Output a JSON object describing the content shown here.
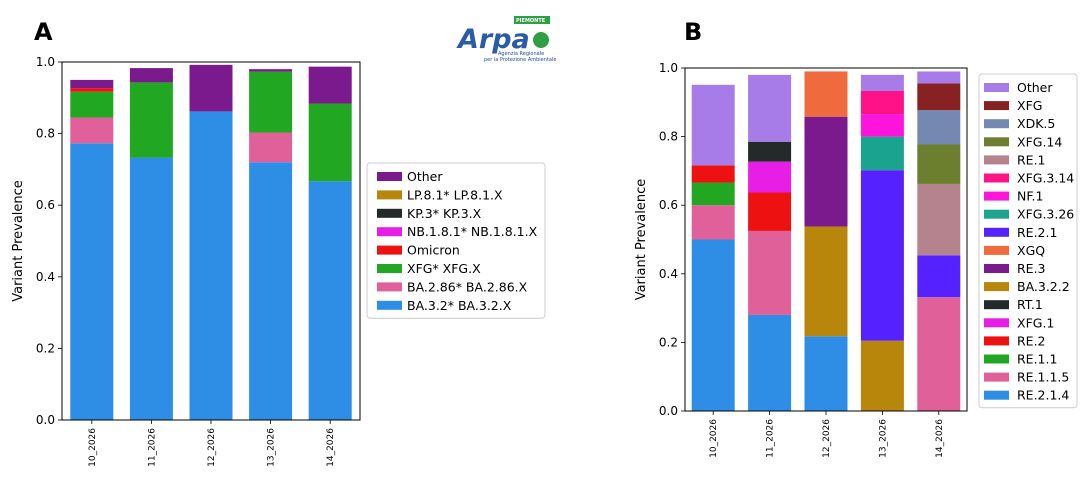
{
  "logo": {
    "word": "Arpa",
    "badge": "PIEMONTE",
    "line1": "Agenzia Regionale",
    "line2": "per la Protezione Ambientale"
  },
  "chart_data": [
    {
      "panel": "A",
      "type": "bar",
      "stacked": true,
      "categories": [
        "10_2026",
        "11_2026",
        "12_2026",
        "13_2026",
        "14_2026"
      ],
      "ylabel": "Variant Prevalence",
      "xlabel": "",
      "ylim": [
        0,
        1.0
      ],
      "yticks": [
        0.0,
        0.2,
        0.4,
        0.6,
        0.8,
        1.0
      ],
      "ytick_labels": [
        "0.0",
        "0.2",
        "0.4",
        "0.6",
        "0.8",
        "1.0"
      ],
      "legend_position": "right",
      "legend_order": [
        "Other",
        "LP.8.1* LP.8.1.X",
        "KP.3* KP.3.X",
        "NB.1.8.1* NB.1.8.1.X",
        "Omicron",
        "XFG* XFG.X",
        "BA.2.86* BA.2.86.X",
        "BA.3.2* BA.3.2.X"
      ],
      "series": [
        {
          "name": "BA.3.2* BA.3.2.X",
          "color": "#2e8ee6",
          "values": [
            0.773,
            0.733,
            0.862,
            0.72,
            0.667
          ]
        },
        {
          "name": "BA.2.86* BA.2.86.X",
          "color": "#e0619a",
          "values": [
            0.072,
            0.0,
            0.0,
            0.083,
            0.0
          ]
        },
        {
          "name": "XFG* XFG.X",
          "color": "#22a722",
          "values": [
            0.072,
            0.21,
            0.0,
            0.17,
            0.217
          ]
        },
        {
          "name": "Omicron",
          "color": "#ee1111",
          "values": [
            0.01,
            0.0,
            0.0,
            0.0,
            0.0
          ]
        },
        {
          "name": "NB.1.8.1* NB.1.8.1.X",
          "color": "#e61ee6",
          "values": [
            0.0,
            0.0,
            0.0,
            0.0,
            0.0
          ]
        },
        {
          "name": "KP.3* KP.3.X",
          "color": "#222a2a",
          "values": [
            0.0,
            0.0,
            0.0,
            0.0,
            0.0
          ]
        },
        {
          "name": "LP.8.1* LP.8.1.X",
          "color": "#b7860b",
          "values": [
            0.0,
            0.0,
            0.0,
            0.0,
            0.0
          ]
        },
        {
          "name": "Other",
          "color": "#7a1a8c",
          "values": [
            0.023,
            0.04,
            0.13,
            0.007,
            0.103
          ]
        }
      ]
    },
    {
      "panel": "B",
      "type": "bar",
      "stacked": true,
      "categories": [
        "10_2026",
        "11_2026",
        "12_2026",
        "13_2026",
        "14_2026"
      ],
      "ylabel": "Variant Prevalence",
      "xlabel": "",
      "ylim": [
        0,
        1.0
      ],
      "yticks": [
        0.0,
        0.2,
        0.4,
        0.6,
        0.8,
        1.0
      ],
      "ytick_labels": [
        "0.0",
        "0.2",
        "0.4",
        "0.6",
        "0.8",
        "1.0"
      ],
      "legend_position": "right",
      "legend_order": [
        "Other",
        "XFG",
        "XDK.5",
        "XFG.14",
        "RE.1",
        "XFG.3.14",
        "NF.1",
        "XFG.3.26",
        "RE.2.1",
        "XGQ",
        "RE.3",
        "BA.3.2.2",
        "RT.1",
        "XFG.1",
        "RE.2",
        "RE.1.1",
        "RE.1.1.5",
        "RE.2.1.4"
      ],
      "series": [
        {
          "name": "RE.2.1.4",
          "color": "#2e8ee6",
          "values": [
            0.5,
            0.28,
            0.218,
            0.0,
            0.0
          ]
        },
        {
          "name": "RE.1.1.5",
          "color": "#e0619a",
          "values": [
            0.1,
            0.245,
            0.0,
            0.0,
            0.332
          ]
        },
        {
          "name": "RE.1.1",
          "color": "#22a722",
          "values": [
            0.066,
            0.0,
            0.0,
            0.0,
            0.0
          ]
        },
        {
          "name": "RE.2",
          "color": "#ee1111",
          "values": [
            0.05,
            0.112,
            0.0,
            0.0,
            0.0
          ]
        },
        {
          "name": "XFG.1",
          "color": "#e61ee6",
          "values": [
            0.0,
            0.09,
            0.0,
            0.0,
            0.0
          ]
        },
        {
          "name": "RT.1",
          "color": "#222a2a",
          "values": [
            0.0,
            0.058,
            0.0,
            0.0,
            0.0
          ]
        },
        {
          "name": "BA.3.2.2",
          "color": "#b7860b",
          "values": [
            0.0,
            0.0,
            0.32,
            0.205,
            0.0
          ]
        },
        {
          "name": "RE.3",
          "color": "#7a1a8c",
          "values": [
            0.0,
            0.0,
            0.32,
            0.0,
            0.0
          ]
        },
        {
          "name": "XGQ",
          "color": "#ef6a3c",
          "values": [
            0.0,
            0.0,
            0.132,
            0.0,
            0.0
          ]
        },
        {
          "name": "RE.2.1",
          "color": "#5522ff",
          "values": [
            0.0,
            0.0,
            0.0,
            0.497,
            0.122
          ]
        },
        {
          "name": "XFG.3.26",
          "color": "#1aa38e",
          "values": [
            0.0,
            0.0,
            0.0,
            0.098,
            0.0
          ]
        },
        {
          "name": "NF.1",
          "color": "#ff14dc",
          "values": [
            0.0,
            0.0,
            0.0,
            0.065,
            0.0
          ]
        },
        {
          "name": "XFG.3.14",
          "color": "#ff1188",
          "values": [
            0.0,
            0.0,
            0.0,
            0.068,
            0.0
          ]
        },
        {
          "name": "RE.1",
          "color": "#b5838d",
          "values": [
            0.0,
            0.0,
            0.0,
            0.0,
            0.208
          ]
        },
        {
          "name": "XFG.14",
          "color": "#6b7f2e",
          "values": [
            0.0,
            0.0,
            0.0,
            0.0,
            0.115
          ]
        },
        {
          "name": "XDK.5",
          "color": "#7488b2",
          "values": [
            0.0,
            0.0,
            0.0,
            0.0,
            0.1
          ]
        },
        {
          "name": "XFG",
          "color": "#882222",
          "values": [
            0.0,
            0.0,
            0.0,
            0.0,
            0.078
          ]
        },
        {
          "name": "Other",
          "color": "#a77be8",
          "values": [
            0.235,
            0.195,
            0.0,
            0.047,
            0.035
          ]
        }
      ]
    }
  ]
}
